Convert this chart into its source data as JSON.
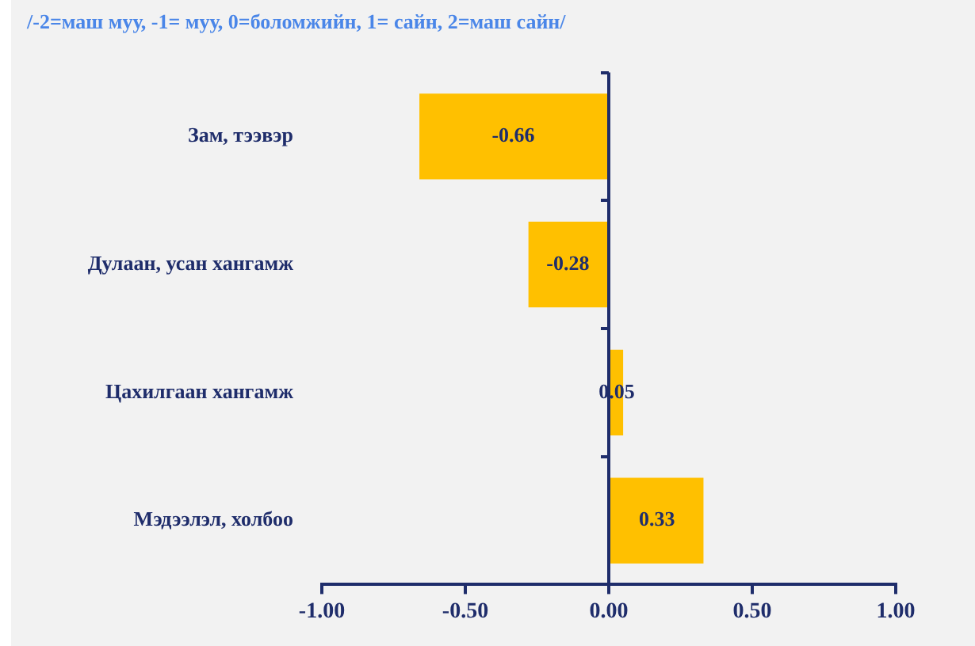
{
  "chart_data": {
    "type": "bar",
    "orientation": "horizontal",
    "subtitle": "/-2=маш муу, -1= муу, 0=боломжийн, 1= сайн, 2=маш сайн/",
    "categories": [
      "Зам, тээвэр",
      "Дулаан, усан хангамж",
      "Цахилгаан хангамж",
      "Мэдээлэл, холбоо"
    ],
    "values": [
      -0.66,
      -0.28,
      0.05,
      0.33
    ],
    "color": "#ffc000",
    "xlim": [
      -1,
      1
    ],
    "xticks": [
      {
        "value": -1,
        "label": "-1.00"
      },
      {
        "value": -0.5,
        "label": "-0.50"
      },
      {
        "value": 0,
        "label": "0.00"
      },
      {
        "value": 0.5,
        "label": "0.50"
      },
      {
        "value": 1,
        "label": "1.00"
      }
    ],
    "ref_lines": [
      {
        "axis": "x",
        "value": 0,
        "color": "#1f2d6b"
      }
    ],
    "data_labels": true,
    "grid": false,
    "legend": false
  }
}
